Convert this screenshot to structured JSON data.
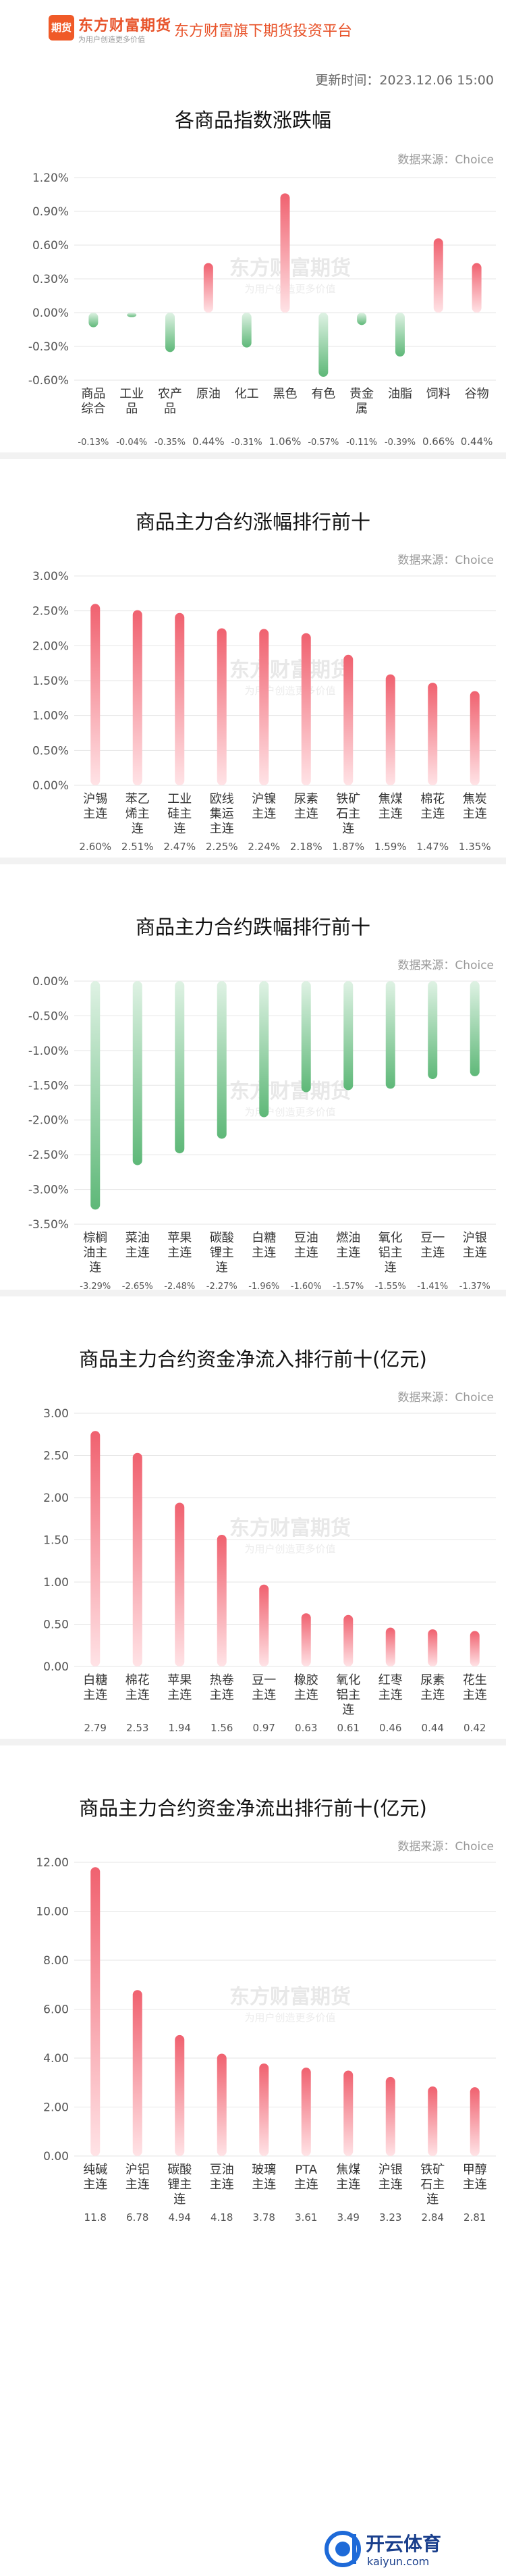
{
  "header": {
    "logo_badge": "期货",
    "logo_name": "东方财富期货",
    "logo_slogan": "为用户创造更多价值",
    "platform": "东方财富旗下期货投资平台",
    "update_time": "更新时间：2023.12.06 15:00"
  },
  "source_label": "数据来源：Choice",
  "watermark": {
    "name": "东方财富期货",
    "slogan": "为用户创造更多价值"
  },
  "footer": {
    "brand": "开云体育",
    "url": "kaiyun.com"
  },
  "colors": {
    "up": "#f0616f",
    "down": "#5eb878",
    "grid": "#e6e6e6",
    "axis_text": "#555"
  },
  "sections": [
    {
      "title": "各商品指数涨跌幅"
    },
    {
      "title": "商品主力合约涨幅排行前十"
    },
    {
      "title": "商品主力合约跌幅排行前十"
    },
    {
      "title": "商品主力合约资金净流入排行前十(亿元)"
    },
    {
      "title": "商品主力合约资金净流出排行前十(亿元)"
    }
  ],
  "chart_data": [
    {
      "type": "bar",
      "title": "各商品指数涨跌幅",
      "categories": [
        "商品综合",
        "工业品",
        "农产品",
        "原油",
        "化工",
        "黑色",
        "有色",
        "贵金属",
        "油脂",
        "饲料",
        "谷物"
      ],
      "values": [
        -0.13,
        -0.04,
        -0.35,
        0.44,
        -0.31,
        1.06,
        -0.57,
        -0.11,
        -0.39,
        0.66,
        0.44
      ],
      "value_labels": [
        "-0.13%",
        "-0.04%",
        "-0.35%",
        "0.44%",
        "-0.31%",
        "1.06%",
        "-0.57%",
        "-0.11%",
        "-0.39%",
        "0.66%",
        "0.44%"
      ],
      "yticks": [
        "1.20%",
        "0.90%",
        "0.60%",
        "0.30%",
        "0.00%",
        "-0.30%",
        "-0.60%"
      ],
      "ylim": [
        -0.6,
        1.2
      ],
      "grid": true
    },
    {
      "type": "bar",
      "title": "商品主力合约涨幅排行前十",
      "categories": [
        "沪锡主连",
        "苯乙烯主连",
        "工业硅主连",
        "欧线集运主连",
        "沪镍主连",
        "尿素主连",
        "铁矿石主连",
        "焦煤主连",
        "棉花主连",
        "焦炭主连"
      ],
      "values": [
        2.6,
        2.51,
        2.47,
        2.25,
        2.24,
        2.18,
        1.87,
        1.59,
        1.47,
        1.35
      ],
      "value_labels": [
        "2.60%",
        "2.51%",
        "2.47%",
        "2.25%",
        "2.24%",
        "2.18%",
        "1.87%",
        "1.59%",
        "1.47%",
        "1.35%"
      ],
      "yticks": [
        "3.00%",
        "2.50%",
        "2.00%",
        "1.50%",
        "1.00%",
        "0.50%",
        "0.00%"
      ],
      "ylim": [
        0,
        3.0
      ],
      "grid": true
    },
    {
      "type": "bar",
      "title": "商品主力合约跌幅排行前十",
      "categories": [
        "棕榈油主连",
        "菜油主连",
        "苹果主连",
        "碳酸锂主连",
        "白糖主连",
        "豆油主连",
        "燃油主连",
        "氧化铝主连",
        "豆一主连",
        "沪银主连"
      ],
      "values": [
        -3.29,
        -2.65,
        -2.48,
        -2.27,
        -1.96,
        -1.6,
        -1.57,
        -1.55,
        -1.41,
        -1.37
      ],
      "value_labels": [
        "-3.29%",
        "-2.65%",
        "-2.48%",
        "-2.27%",
        "-1.96%",
        "-1.60%",
        "-1.57%",
        "-1.55%",
        "-1.41%",
        "-1.37%"
      ],
      "yticks": [
        "0.00%",
        "-0.50%",
        "-1.00%",
        "-1.50%",
        "-2.00%",
        "-2.50%",
        "-3.00%",
        "-3.50%"
      ],
      "ylim": [
        -3.5,
        0
      ],
      "grid": true
    },
    {
      "type": "bar",
      "title": "商品主力合约资金净流入排行前十(亿元)",
      "categories": [
        "白糖主连",
        "棉花主连",
        "苹果主连",
        "热卷主连",
        "豆一主连",
        "橡胶主连",
        "氧化铝主连",
        "红枣主连",
        "尿素主连",
        "花生主连"
      ],
      "values": [
        2.79,
        2.53,
        1.94,
        1.56,
        0.97,
        0.63,
        0.61,
        0.46,
        0.44,
        0.42
      ],
      "value_labels": [
        "2.79",
        "2.53",
        "1.94",
        "1.56",
        "0.97",
        "0.63",
        "0.61",
        "0.46",
        "0.44",
        "0.42"
      ],
      "yticks": [
        "3.00",
        "2.50",
        "2.00",
        "1.50",
        "1.00",
        "0.50",
        "0.00"
      ],
      "ylim": [
        0,
        3.0
      ],
      "grid": true
    },
    {
      "type": "bar",
      "title": "商品主力合约资金净流出排行前十(亿元)",
      "categories": [
        "纯碱主连",
        "沪铝主连",
        "碳酸锂主连",
        "豆油主连",
        "玻璃主连",
        "PTA主连",
        "焦煤主连",
        "沪银主连",
        "铁矿石主连",
        "甲醇主连"
      ],
      "values": [
        11.8,
        6.78,
        4.94,
        4.18,
        3.78,
        3.61,
        3.49,
        3.23,
        2.84,
        2.81
      ],
      "value_labels": [
        "11.8",
        "6.78",
        "4.94",
        "4.18",
        "3.78",
        "3.61",
        "3.49",
        "3.23",
        "2.84",
        "2.81"
      ],
      "yticks": [
        "12.00",
        "10.00",
        "8.00",
        "6.00",
        "4.00",
        "2.00",
        "0.00"
      ],
      "ylim": [
        0,
        12.0
      ],
      "grid": true
    }
  ]
}
